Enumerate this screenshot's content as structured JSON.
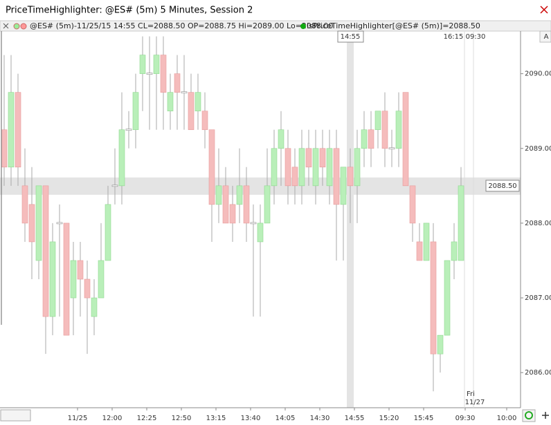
{
  "window": {
    "title": "PriceTimeHighlighter: @ES# (5m) 5 Minutes, Session 2",
    "status_line": "@ES# (5m)-11/25/15 14:55 CL=2088.50 OP=2088.75 Hi=2089.00 Lo=2088.00",
    "indicator_line": "IsPriceTimeHighlighter[@ES# (5m)]=2088.50",
    "side_button": "A"
  },
  "chart_data": {
    "type": "candlestick",
    "categories": [
      null,
      null,
      null,
      null,
      null,
      null,
      null,
      null,
      null,
      null,
      "11/25",
      null,
      null,
      null,
      null,
      "12:00",
      null,
      null,
      null,
      null,
      "12:25",
      null,
      null,
      null,
      null,
      "12:50",
      null,
      null,
      null,
      null,
      "13:15",
      null,
      null,
      null,
      null,
      "13:40",
      null,
      null,
      null,
      null,
      "14:05",
      null,
      null,
      null,
      null,
      "14:30",
      null,
      null,
      null,
      null,
      "14:55",
      null,
      null,
      null,
      null,
      "15:20",
      null,
      null,
      null,
      null,
      "15:45",
      null,
      null,
      null,
      null,
      null,
      "09:30",
      null,
      null,
      null,
      null,
      null,
      "10:00"
    ],
    "open": [
      2089.25,
      2088.75,
      2089.75,
      2088.5,
      2088.25,
      2087.5,
      2088.5,
      2086.75,
      2088,
      2088,
      2087,
      2087.5,
      2087.25,
      2086.75,
      2087,
      2087.5,
      2088.5,
      2088.5,
      2089.25,
      2089.25,
      2090,
      2090,
      2090,
      2090.25,
      2089.5,
      2090,
      2089.75,
      2089.75,
      2089.5,
      2089.5,
      2089.25,
      2088.25,
      2088.5,
      2088.25,
      2088.25,
      2088.5,
      2088,
      2087.75,
      2088,
      2088.5,
      2089,
      2089,
      2088.75,
      2088.5,
      2089,
      2088.5,
      2089,
      2088.5,
      2089,
      2088.25,
      2088.75,
      2088.5,
      2089,
      2089.25,
      2089.25,
      2089.5,
      2089,
      2089,
      2089.75,
      2088.5,
      2087.75,
      2087.5,
      2087.75,
      2086.25,
      2086.5,
      2087.5,
      2087.5,
      null,
      null,
      null,
      null,
      null,
      null
    ],
    "high": [
      2090.25,
      2090.25,
      2090,
      2089,
      2088.75,
      2088.5,
      2088.5,
      2088,
      2088.25,
      2088,
      2087.75,
      2087.75,
      2087.5,
      2087.25,
      2088,
      2088.5,
      2089,
      2089.75,
      2089.5,
      2090,
      2090.5,
      2090.5,
      2090.5,
      2090.5,
      2090,
      2090.25,
      2090.25,
      2090,
      2090,
      2089.75,
      2089.25,
      2089,
      2088.75,
      2088.5,
      2089,
      2088.75,
      2088.25,
      2088.25,
      2089,
      2089.25,
      2089.5,
      2089.25,
      2089,
      2089.25,
      2089.25,
      2089.25,
      2089.25,
      2089.25,
      2089.25,
      2088.75,
      2089,
      2089.25,
      2089.5,
      2089.5,
      2089.5,
      2089.75,
      2089.25,
      2089.75,
      2089.75,
      2088.5,
      2088,
      2088,
      2088,
      2086.5,
      2087.5,
      2088,
      2088.75,
      null,
      null,
      null,
      null,
      null,
      null
    ],
    "low": [
      2088.5,
      2088.5,
      2088.5,
      2087.75,
      2087.25,
      2087.25,
      2086.25,
      2086.5,
      2086.75,
      2086.5,
      2086.5,
      2086.75,
      2086.25,
      2086.5,
      2087,
      2087.5,
      2088.25,
      2088.25,
      2089,
      2089,
      2089.5,
      2089.25,
      2089.25,
      2089.25,
      2089.25,
      2089.25,
      2089.25,
      2089.25,
      2089.25,
      2089,
      2087.75,
      2088,
      2088,
      2087.75,
      2088,
      2087.75,
      2086.75,
      2086.75,
      2088,
      2088.25,
      2088.5,
      2088.25,
      2088.25,
      2088.25,
      2088.5,
      2088.25,
      2088.5,
      2088.25,
      2087.5,
      2087.5,
      2088,
      2088,
      2088.75,
      2088.75,
      2089,
      2088.75,
      2088.75,
      2088.75,
      2088.5,
      2087.75,
      2087.5,
      2087.5,
      2085.75,
      2086,
      2086.5,
      2087.25,
      2087.5,
      null,
      null,
      null,
      null,
      null,
      null
    ],
    "close": [
      2088.75,
      2089.75,
      2088.75,
      2088,
      2087.75,
      2088.5,
      2086.75,
      2087.75,
      2088,
      2086.5,
      2087.5,
      2087.25,
      2087,
      2087,
      2087.5,
      2088.25,
      2088.5,
      2089.25,
      2089.25,
      2089.75,
      2090.25,
      2090,
      2090.25,
      2089.75,
      2089.75,
      2089.75,
      2089.75,
      2089.25,
      2089.75,
      2089.25,
      2088.25,
      2088.5,
      2088,
      2088,
      2088.5,
      2088,
      2088,
      2088,
      2088.5,
      2089,
      2089.25,
      2088.5,
      2088.5,
      2089,
      2088.75,
      2089,
      2088.75,
      2089,
      2088.25,
      2088.75,
      2088.5,
      2089,
      2089.25,
      2089,
      2089.5,
      2089,
      2089,
      2089.5,
      2088.5,
      2088,
      2087.5,
      2088,
      2086.25,
      2086.5,
      2087.5,
      2087.75,
      2088.5,
      null,
      null,
      null,
      null,
      null,
      null
    ],
    "up_color": "#b9efb9",
    "down_color": "#f5bcbc",
    "ylim": [
      2085.53,
      2090.57
    ],
    "yticks": [
      {
        "value": 2086,
        "label": "2086.00"
      },
      {
        "value": 2087,
        "label": "2087.00"
      },
      {
        "value": 2088,
        "label": "2088.00"
      },
      {
        "value": 2089,
        "label": "2089.00"
      },
      {
        "value": 2090,
        "label": "2090.00"
      }
    ],
    "price_highlight": {
      "value": 2088.5,
      "label": "2088.50"
    },
    "time_highlight": "14:55",
    "session_break": {
      "end_time": "16:15",
      "start_time": "09:30",
      "day": "Fri",
      "date": "11/27"
    }
  }
}
